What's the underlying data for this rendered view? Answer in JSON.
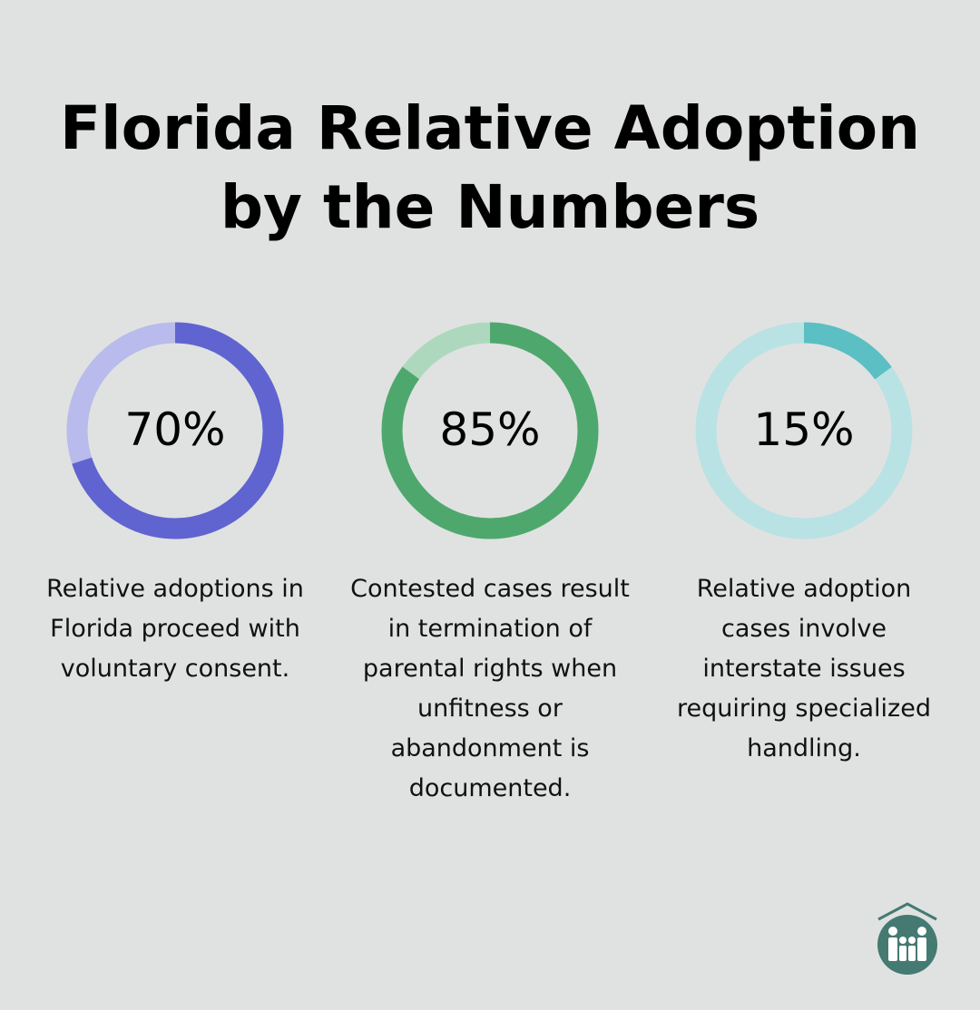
{
  "title": {
    "line1": "Florida Relative Adoption",
    "line2": "by the Numbers"
  },
  "chart_data": {
    "type": "pie",
    "variant": "donut",
    "series": [
      {
        "value": 70,
        "label": "70%",
        "description": "Relative adoptions in Florida proceed with voluntary consent.",
        "color": "#6064d0",
        "track_color": "#b8bbeb"
      },
      {
        "value": 85,
        "label": "85%",
        "description": "Contested cases result in termination of parental rights when unfitness or abandonment is documented.",
        "color": "#4ea86d",
        "track_color": "#aed8bd"
      },
      {
        "value": 15,
        "label": "15%",
        "description": "Relative adoption cases involve interstate issues requiring specialized handling.",
        "color": "#5bbfc3",
        "track_color": "#b9e2e4"
      }
    ]
  },
  "logo": {
    "icon": "house-family-icon",
    "color": "#447a72"
  }
}
